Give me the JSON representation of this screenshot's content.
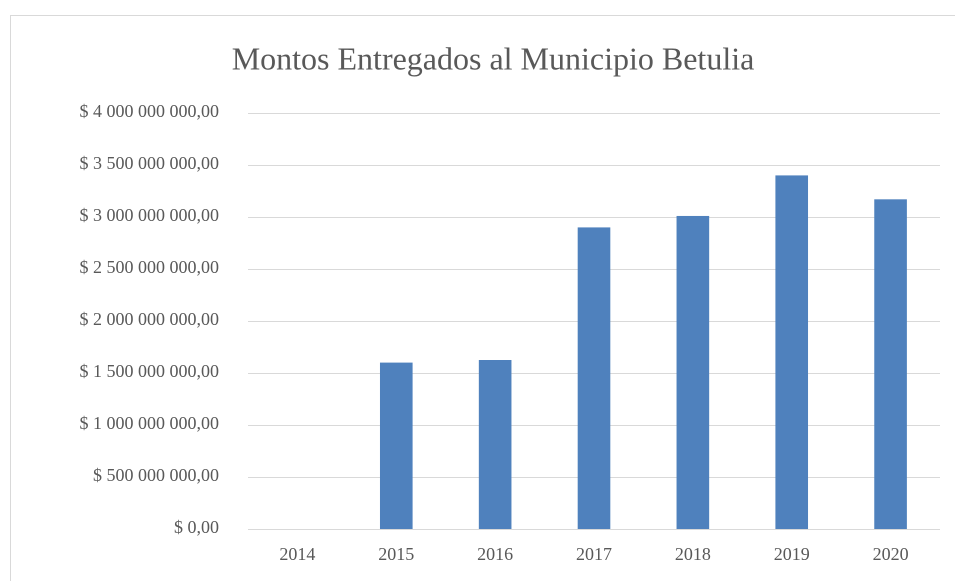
{
  "chart_data": {
    "type": "bar",
    "title": "Montos  Entregados al  Municipio Betulia",
    "categories": [
      "2014",
      "2015",
      "2016",
      "2017",
      "2018",
      "2019",
      "2020"
    ],
    "values": [
      0,
      1600000000,
      1625000000,
      2900000000,
      3010000000,
      3400000000,
      3170000000
    ],
    "color": "#4f81bd",
    "ylim": [
      0,
      4000000000
    ],
    "yticks": [
      {
        "value": 0,
        "label": "$ 0,00"
      },
      {
        "value": 500000000,
        "label": "$ 500 000 000,00"
      },
      {
        "value": 1000000000,
        "label": "$ 1 000 000 000,00"
      },
      {
        "value": 1500000000,
        "label": "$ 1 500 000 000,00"
      },
      {
        "value": 2000000000,
        "label": "$ 2 000 000 000,00"
      },
      {
        "value": 2500000000,
        "label": "$ 2 500 000 000,00"
      },
      {
        "value": 3000000000,
        "label": "$ 3 000 000 000,00"
      },
      {
        "value": 3500000000,
        "label": "$ 3 500 000 000,00"
      },
      {
        "value": 4000000000,
        "label": "$ 4 000 000 000,00"
      }
    ],
    "grid": true
  }
}
